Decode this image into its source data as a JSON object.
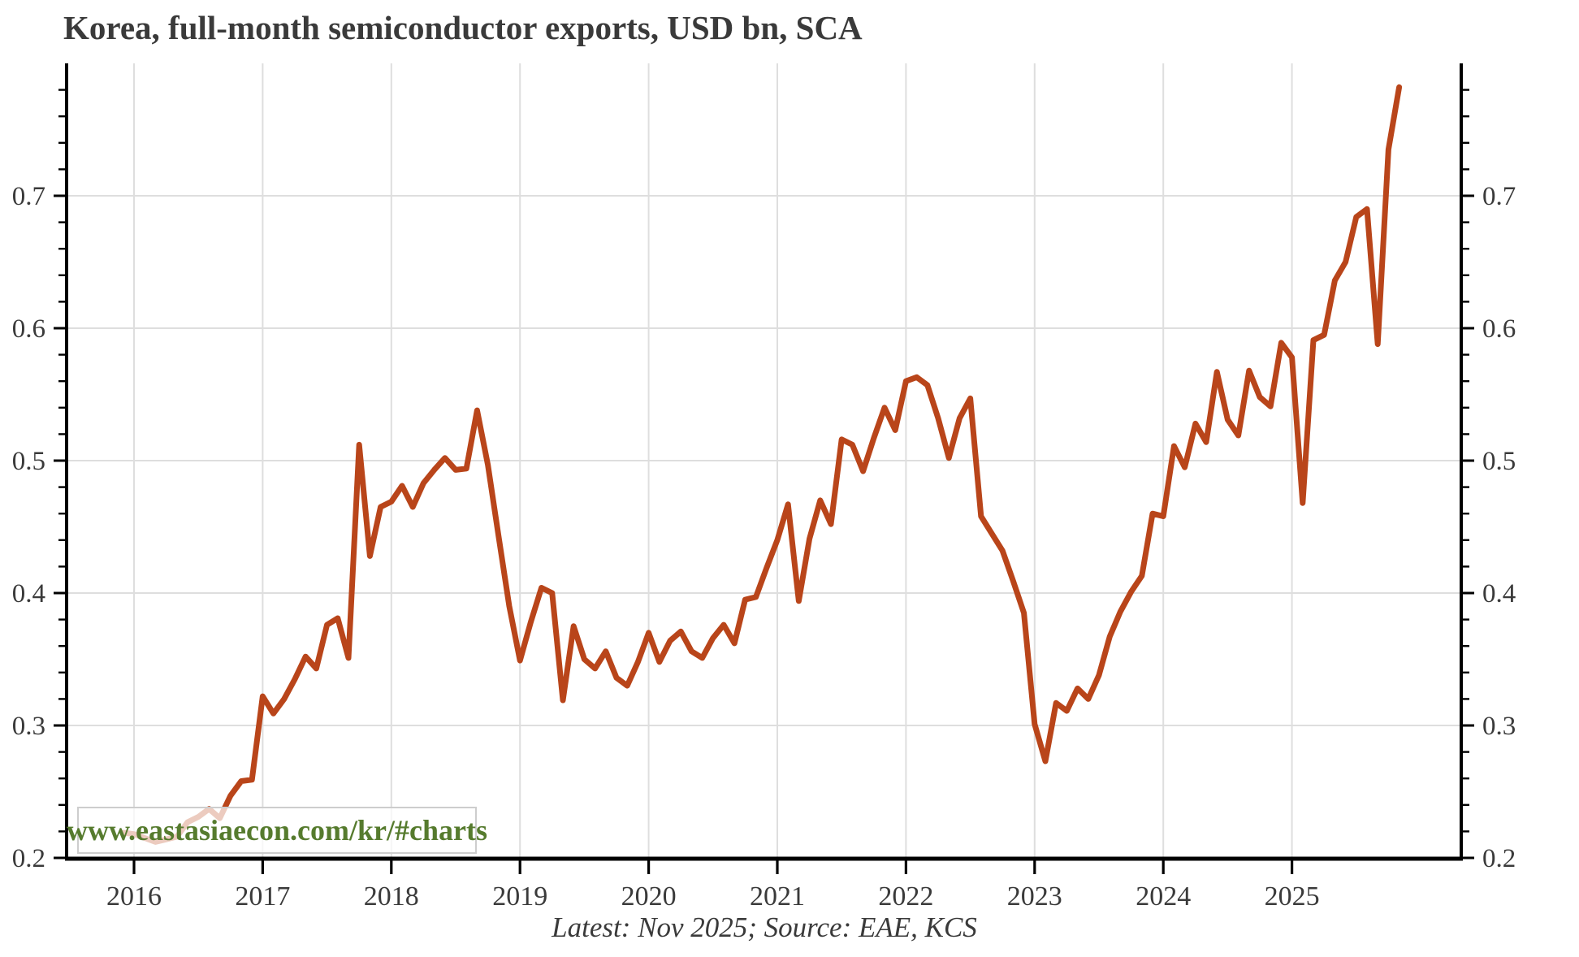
{
  "header": {
    "title": "Korea, full-month semiconductor exports, USD bn, SCA"
  },
  "watermark": {
    "text": "www.eastasiaecon.com/kr/#charts"
  },
  "footer": {
    "caption": "Latest: Nov 2025; Source: EAE, KCS"
  },
  "colors": {
    "line": "#b9451a",
    "watermark_text": "#567b2e",
    "grid": "#dedede",
    "axis": "#000000",
    "text": "#3a3a3a",
    "background": "#ffffff"
  },
  "chart_data": {
    "type": "line",
    "title": "Korea, full-month semiconductor exports, USD bn, SCA",
    "xlabel": "",
    "ylabel": "",
    "frequency": "monthly",
    "x_start": "2015-12",
    "x_end": "2025-11",
    "x_tick_years": [
      2016,
      2017,
      2018,
      2019,
      2020,
      2021,
      2022,
      2023,
      2024,
      2025
    ],
    "y_tick_labels": [
      "0.2",
      "0.3",
      "0.4",
      "0.5",
      "0.6",
      "0.7"
    ],
    "y_major_ticks": [
      0.2,
      0.3,
      0.4,
      0.5,
      0.6,
      0.7
    ],
    "y_minor_step": 0.02,
    "ylim": [
      0.2,
      0.8
    ],
    "grid": true,
    "legend": "none",
    "series": [
      {
        "name": "Semiconductor exports, USD bn, SCA",
        "monthly_values": [
          0.219,
          0.218,
          0.215,
          0.212,
          0.214,
          0.216,
          0.227,
          0.231,
          0.237,
          0.23,
          0.247,
          0.258,
          0.259,
          0.322,
          0.309,
          0.32,
          0.335,
          0.352,
          0.343,
          0.376,
          0.381,
          0.351,
          0.512,
          0.428,
          0.465,
          0.469,
          0.481,
          0.465,
          0.483,
          0.493,
          0.502,
          0.493,
          0.494,
          0.538,
          0.497,
          0.443,
          0.39,
          0.349,
          0.378,
          0.404,
          0.4,
          0.319,
          0.375,
          0.35,
          0.343,
          0.356,
          0.336,
          0.33,
          0.348,
          0.37,
          0.348,
          0.364,
          0.371,
          0.356,
          0.351,
          0.366,
          0.376,
          0.362,
          0.395,
          0.397,
          0.419,
          0.44,
          0.467,
          0.394,
          0.441,
          0.47,
          0.452,
          0.516,
          0.512,
          0.492,
          0.517,
          0.54,
          0.523,
          0.56,
          0.563,
          0.557,
          0.532,
          0.502,
          0.532,
          0.547,
          0.458,
          0.445,
          0.432,
          0.409,
          0.385,
          0.301,
          0.273,
          0.317,
          0.311,
          0.328,
          0.32,
          0.338,
          0.367,
          0.386,
          0.401,
          0.413,
          0.46,
          0.458,
          0.511,
          0.495,
          0.528,
          0.514,
          0.567,
          0.531,
          0.519,
          0.568,
          0.548,
          0.541,
          0.589,
          0.578,
          0.468,
          0.591,
          0.595,
          0.636,
          0.65,
          0.684,
          0.69,
          0.588,
          0.735,
          0.782
        ]
      }
    ]
  }
}
